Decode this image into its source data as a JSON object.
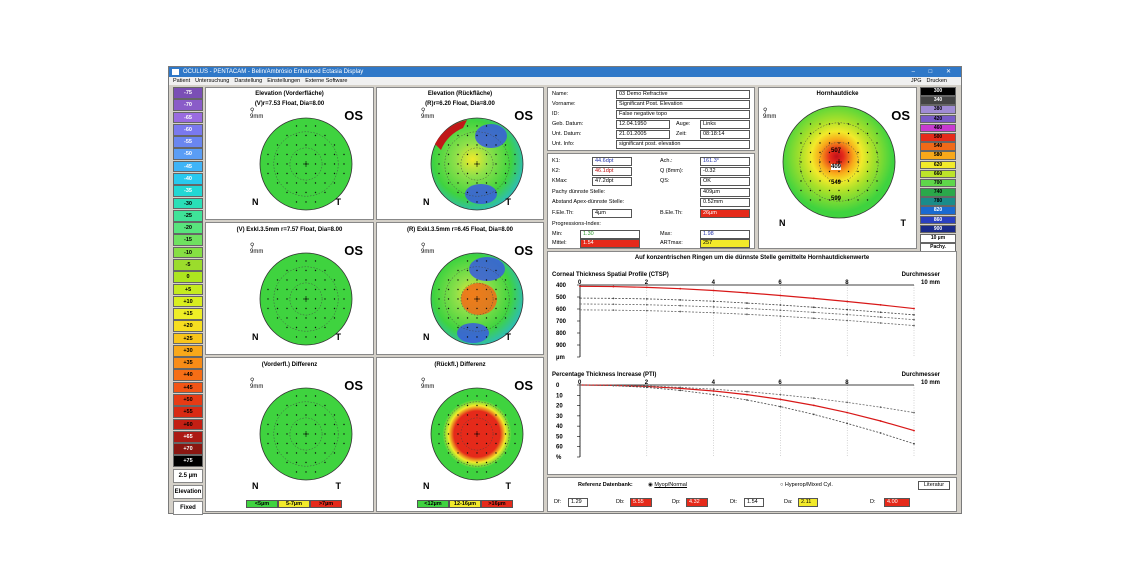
{
  "window": {
    "title": "OCULUS - PENTACAM - Belin/Ambrósio Enhanced Ectasia Display",
    "controls": "– □ ✕"
  },
  "menu": {
    "items": [
      "Patient",
      "Untersuchung",
      "Darstellung",
      "Einstellungen",
      "Externe Software"
    ],
    "right": [
      "JPG",
      "Drucken"
    ]
  },
  "scale": {
    "values": [
      "-75",
      "-70",
      "-65",
      "-60",
      "-55",
      "-50",
      "-45",
      "-40",
      "-35",
      "-30",
      "-25",
      "-20",
      "-15",
      "-10",
      "-5",
      "0",
      "+5",
      "+10",
      "+15",
      "+20",
      "+25",
      "+30",
      "+35",
      "+40",
      "+45",
      "+50",
      "+55",
      "+60",
      "+65",
      "+70",
      "+75"
    ],
    "colors": [
      "#7a4fb5",
      "#8a5cc8",
      "#9a6be0",
      "#7a79ee",
      "#6a86f0",
      "#5a9df5",
      "#3fb4f7",
      "#29c8ee",
      "#22d7d4",
      "#2adfb7",
      "#3fe398",
      "#58e47d",
      "#6fe160",
      "#86df43",
      "#9bdc2c",
      "#ade51f",
      "#c5eb1f",
      "#d9ee20",
      "#eeee26",
      "#f7de20",
      "#f8c51b",
      "#f8a81a",
      "#f88c17",
      "#f66e16",
      "#f25516",
      "#e63b15",
      "#d82a14",
      "#c41f14",
      "#ac1a14",
      "#8a1611",
      "#000000"
    ],
    "resolution": "2.5 µm",
    "mode": "Elevation",
    "fixed": "Fixed"
  },
  "maps": {
    "front_elev": {
      "title": "Elevation (Vorderfläche)",
      "sub": "(V)r=7.53 Float, Dia=8.00",
      "eye": "OS",
      "n": "N",
      "t": "T",
      "zoom": "9mm"
    },
    "back_elev": {
      "title": "Elevation (Rückfläche)",
      "sub": "(R)r=6.20 Float, Dia=8.00",
      "eye": "OS",
      "n": "N",
      "t": "T",
      "zoom": "9mm"
    },
    "front_excl": {
      "sub": "(V) Exkl.3.5mm r=7.57 Float, Dia=8.00",
      "eye": "OS",
      "n": "N",
      "t": "T",
      "zoom": "9mm"
    },
    "back_excl": {
      "sub": "(R) Exkl.3.5mm r=6.45 Float, Dia=8.00",
      "eye": "OS",
      "n": "N",
      "t": "T",
      "zoom": "9mm"
    },
    "front_diff": {
      "sub": "(Vorderfl.) Differenz",
      "eye": "OS",
      "n": "N",
      "t": "T",
      "zoom": "9mm",
      "legend": [
        "<5µm",
        "5-7µm",
        ">7µm"
      ]
    },
    "back_diff": {
      "sub": "(Rückfl.) Differenz",
      "eye": "OS",
      "n": "N",
      "t": "T",
      "zoom": "9mm",
      "legend": [
        "<12µm",
        "12-16µm",
        ">16µm"
      ]
    },
    "pachy": {
      "title": "Hornhautdicke",
      "eye": "OS",
      "n": "N",
      "t": "T",
      "zoom": "9mm",
      "values": [
        "409",
        "507",
        "549",
        "599"
      ]
    }
  },
  "patient": {
    "rows": [
      [
        "Name:",
        "03 Demo Refractive"
      ],
      [
        "Vorname:",
        "Significant Post. Elevation"
      ],
      [
        "ID:",
        "False negative topo"
      ],
      [
        "Geb. Datum:",
        "12.04.1950",
        "Auge:",
        "Links"
      ],
      [
        "Unt. Datum:",
        "21.01.2005",
        "Zeit:",
        "08:18:14"
      ],
      [
        "Unt. Info:",
        "significant post. elevation"
      ]
    ]
  },
  "kvals": {
    "K1": {
      "l": "K1:",
      "v": "44.6dpt"
    },
    "K2": {
      "l": "K2:",
      "v": "46.1dpt"
    },
    "KMax": {
      "l": "KMax:",
      "v": "47.2dpt"
    },
    "Ach": {
      "l": "Ach.:",
      "v": "161.3°"
    },
    "Q": {
      "l": "Q (8mm):",
      "v": "-0.32"
    },
    "QS": {
      "l": "QS:",
      "v": "OK"
    },
    "pachy_thin": {
      "l": "Pachy dünnste Stelle:",
      "v": "409µm"
    },
    "apex_dist": {
      "l": "Abstand Apex-dünnste Stelle:",
      "v": "0.52mm"
    },
    "fele": {
      "l": "F.Ele.Th:",
      "v": "4µm"
    },
    "bele": {
      "l": "B.Ele.Th:",
      "v": "26µm"
    },
    "prog": "Progressions-Index:",
    "min": {
      "l": "Min:",
      "v": "1.30"
    },
    "max": {
      "l": "Max:",
      "v": "1.98"
    },
    "mittel": {
      "l": "Mittel:",
      "v": "1.54"
    },
    "art": {
      "l": "ARTmax:",
      "v": "257"
    }
  },
  "ring_title": "Auf konzentrischen Ringen um die dünnste Stelle gemittelte Hornhautdickenwerte",
  "ctsp": {
    "title": "Corneal Thickness Spatial Profile (CTSP)",
    "xtitle": "Durchmesser",
    "xunit": "10  mm",
    "x": [
      "0",
      "2",
      "4",
      "6",
      "8"
    ],
    "y": [
      "400",
      "500",
      "600",
      "700",
      "800",
      "900",
      "µm"
    ]
  },
  "pti": {
    "title": "Percentage Thickness Increase (PTI)",
    "xtitle": "Durchmesser",
    "xunit": "10  mm",
    "x": [
      "0",
      "2",
      "4",
      "6",
      "8"
    ],
    "y": [
      "0",
      "10",
      "20",
      "30",
      "40",
      "50",
      "60",
      "%"
    ]
  },
  "chart_data": [
    {
      "type": "line",
      "title": "Corneal Thickness Spatial Profile (CTSP)",
      "xlabel": "Durchmesser",
      "ylim": [
        400,
        950
      ],
      "x": [
        0,
        1,
        2,
        3,
        4,
        5,
        6,
        7,
        8,
        9,
        10
      ],
      "series": [
        {
          "values": [
            410,
            412,
            418,
            428,
            442,
            460,
            480,
            502,
            526,
            552,
            580
          ]
        },
        {
          "values": [
            500,
            502,
            506,
            514,
            524,
            538,
            553,
            570,
            588,
            608,
            628
          ]
        },
        {
          "values": [
            545,
            547,
            551,
            558,
            567,
            579,
            593,
            609,
            626,
            645,
            665
          ]
        },
        {
          "values": [
            590,
            592,
            596,
            603,
            612,
            624,
            638,
            654,
            671,
            690,
            710
          ]
        }
      ]
    },
    {
      "type": "line",
      "title": "Percentage Thickness Increase (PTI)",
      "xlabel": "Durchmesser",
      "ylim": [
        0,
        60
      ],
      "x": [
        0,
        1,
        2,
        3,
        4,
        5,
        6,
        7,
        8,
        9,
        10
      ],
      "series": [
        {
          "values": [
            0,
            0.3,
            1.2,
            2.8,
            5,
            8,
            12,
            17,
            23,
            30,
            38
          ]
        },
        {
          "values": [
            0,
            0.5,
            2,
            4.5,
            8,
            12.5,
            18,
            24.5,
            32,
            40,
            49
          ]
        },
        {
          "values": [
            0,
            0.2,
            0.8,
            2,
            3.5,
            5.5,
            8,
            11,
            14.5,
            18.5,
            23
          ]
        }
      ]
    }
  ],
  "ref": {
    "label": "Referenz Datenbank:",
    "opt1": "Myop/Normal",
    "opt2": "Hyperop/Mixed Cyl.",
    "btn": "Literatur",
    "vals": [
      [
        "Df:",
        "1.29"
      ],
      [
        "Db:",
        "5.55"
      ],
      [
        "Dp:",
        "4.32"
      ],
      [
        "Dt:",
        "1.54"
      ],
      [
        "Da:",
        "2.11"
      ],
      [
        "D:",
        "4.00"
      ]
    ]
  }
}
